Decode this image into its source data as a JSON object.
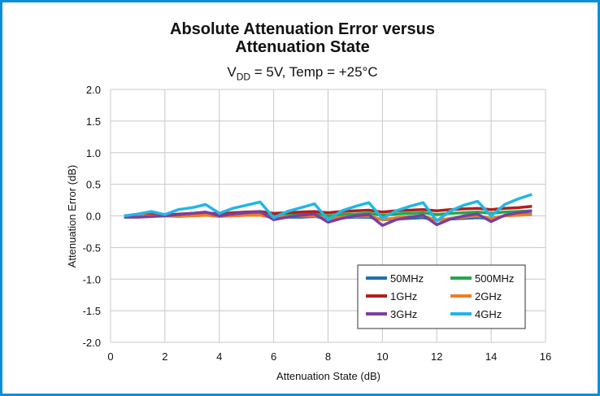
{
  "chart_data": {
    "type": "line",
    "title_line1": "Absolute Attenuation Error versus",
    "title_line2": "Attenuation State",
    "subtitle_pre": "V",
    "subtitle_sub": "DD",
    "subtitle_post": " = 5V, Temp = +25°C",
    "xlabel": "Attenuation State (dB)",
    "ylabel": "Attenuation Error (dB)",
    "xlim": [
      0,
      16
    ],
    "ylim": [
      -2.0,
      2.0
    ],
    "xticks": [
      "0",
      "2",
      "4",
      "6",
      "8",
      "10",
      "12",
      "14",
      "16"
    ],
    "yticks": [
      "2.0",
      "1.5",
      "1.0",
      "0.5",
      "0.0",
      "-0.5",
      "-1.0",
      "-1.5",
      "-2.0"
    ],
    "grid": true,
    "legend_position": "bottom-right",
    "x": [
      0.5,
      1.0,
      1.5,
      2.0,
      2.5,
      3.0,
      3.5,
      4.0,
      4.5,
      5.0,
      5.5,
      6.0,
      6.5,
      7.0,
      7.5,
      8.0,
      8.5,
      9.0,
      9.5,
      10.0,
      10.5,
      11.0,
      11.5,
      12.0,
      12.5,
      13.0,
      13.5,
      14.0,
      14.5,
      15.0,
      15.5
    ],
    "series": [
      {
        "name": "50MHz",
        "color": "#1f6fb4",
        "values": [
          0.0,
          0.0,
          0.01,
          0.0,
          0.01,
          0.01,
          0.02,
          0.0,
          0.01,
          0.02,
          0.02,
          -0.03,
          -0.02,
          -0.02,
          -0.01,
          -0.04,
          -0.03,
          -0.02,
          -0.02,
          -0.06,
          -0.05,
          -0.04,
          -0.03,
          -0.07,
          -0.05,
          -0.04,
          -0.03,
          -0.04,
          0.0,
          0.02,
          0.03
        ]
      },
      {
        "name": "500MHz",
        "color": "#22a84a",
        "values": [
          0.0,
          0.01,
          0.01,
          0.01,
          0.02,
          0.02,
          0.03,
          0.01,
          0.02,
          0.03,
          0.04,
          0.0,
          0.01,
          0.02,
          0.03,
          0.0,
          0.02,
          0.03,
          0.04,
          0.01,
          0.03,
          0.04,
          0.05,
          0.02,
          0.04,
          0.05,
          0.06,
          0.04,
          0.06,
          0.07,
          0.08
        ]
      },
      {
        "name": "1GHz",
        "color": "#b51d1d",
        "values": [
          0.0,
          0.01,
          0.02,
          0.01,
          0.03,
          0.04,
          0.05,
          0.03,
          0.05,
          0.06,
          0.07,
          0.04,
          0.05,
          0.06,
          0.07,
          0.05,
          0.07,
          0.08,
          0.09,
          0.06,
          0.08,
          0.09,
          0.1,
          0.08,
          0.1,
          0.11,
          0.12,
          0.1,
          0.12,
          0.13,
          0.15
        ]
      },
      {
        "name": "2GHz",
        "color": "#ef7d22",
        "values": [
          0.0,
          0.0,
          0.0,
          0.0,
          -0.01,
          0.0,
          0.01,
          -0.01,
          0.0,
          0.01,
          0.01,
          -0.03,
          -0.01,
          0.0,
          0.0,
          -0.04,
          -0.02,
          -0.01,
          0.0,
          -0.06,
          -0.03,
          -0.01,
          0.0,
          -0.07,
          -0.04,
          -0.02,
          0.0,
          -0.04,
          0.0,
          0.01,
          0.02
        ]
      },
      {
        "name": "3GHz",
        "color": "#7b3fa0",
        "values": [
          -0.02,
          -0.02,
          -0.01,
          0.0,
          0.02,
          0.04,
          0.06,
          0.0,
          0.03,
          0.05,
          0.07,
          -0.06,
          -0.02,
          0.01,
          0.03,
          -0.1,
          -0.04,
          0.0,
          0.02,
          -0.15,
          -0.06,
          -0.02,
          0.01,
          -0.14,
          -0.05,
          0.0,
          0.03,
          -0.09,
          0.01,
          0.05,
          0.08
        ]
      },
      {
        "name": "4GHz",
        "color": "#22b6e6",
        "values": [
          0.0,
          0.03,
          0.07,
          0.02,
          0.1,
          0.13,
          0.18,
          0.04,
          0.12,
          0.17,
          0.22,
          -0.03,
          0.07,
          0.13,
          0.19,
          -0.06,
          0.08,
          0.15,
          0.21,
          -0.04,
          0.08,
          0.15,
          0.21,
          -0.08,
          0.08,
          0.17,
          0.23,
          0.0,
          0.18,
          0.27,
          0.34
        ]
      }
    ]
  }
}
